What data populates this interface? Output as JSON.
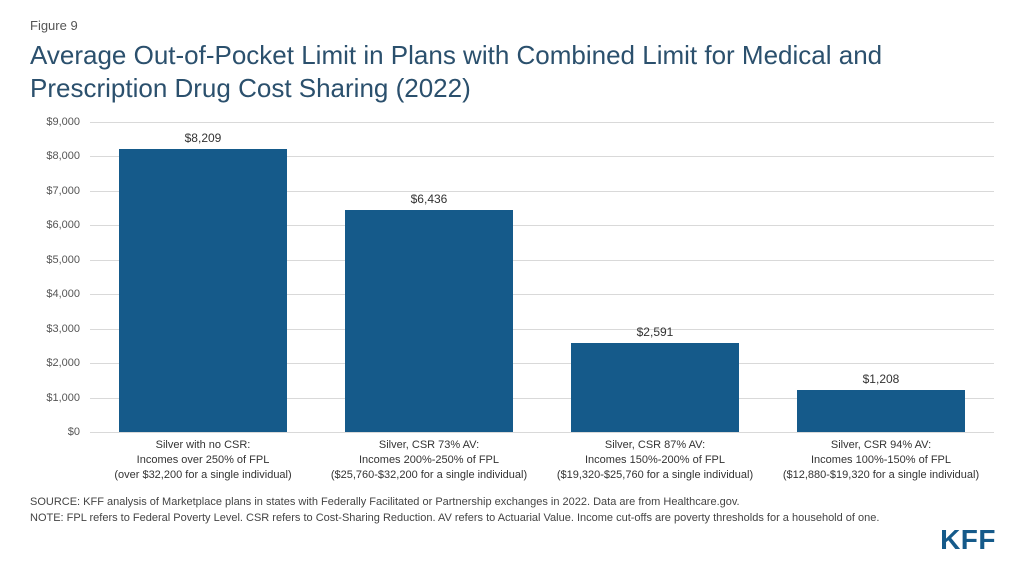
{
  "figure_label": "Figure 9",
  "title": "Average Out-of-Pocket Limit in Plans with Combined Limit for Medical and Prescription Drug Cost Sharing (2022)",
  "chart": {
    "type": "bar",
    "ylim": [
      0,
      9000
    ],
    "ytick_step": 1000,
    "yticks": [
      "$0",
      "$1,000",
      "$2,000",
      "$3,000",
      "$4,000",
      "$5,000",
      "$6,000",
      "$7,000",
      "$8,000",
      "$9,000"
    ],
    "grid_color": "#d9d9d9",
    "background_color": "#ffffff",
    "bar_color": "#155a8a",
    "bar_width_pct": 74,
    "label_fontsize": 12,
    "tick_fontsize": 11,
    "series": [
      {
        "value": 8209,
        "label": "$8,209",
        "x_line1": "Silver with no CSR:",
        "x_line2": "Incomes over 250% of FPL",
        "x_line3": "(over $32,200 for a single individual)"
      },
      {
        "value": 6436,
        "label": "$6,436",
        "x_line1": "Silver, CSR 73% AV:",
        "x_line2": "Incomes 200%-250% of FPL",
        "x_line3": "($25,760-$32,200 for a single individual)"
      },
      {
        "value": 2591,
        "label": "$2,591",
        "x_line1": "Silver, CSR 87% AV:",
        "x_line2": "Incomes 150%-200% of FPL",
        "x_line3": "($19,320-$25,760 for a single individual)"
      },
      {
        "value": 1208,
        "label": "$1,208",
        "x_line1": "Silver, CSR 94% AV:",
        "x_line2": "Incomes 100%-150% of FPL",
        "x_line3": "($12,880-$19,320 for a single individual)"
      }
    ]
  },
  "source": "SOURCE: KFF analysis of Marketplace plans in states with Federally Facilitated or Partnership exchanges in 2022. Data are from Healthcare.gov.",
  "note": "NOTE: FPL refers to Federal Poverty Level. CSR refers to Cost-Sharing Reduction. AV refers to Actuarial Value. Income cut-offs are poverty thresholds for a household of one.",
  "logo_text": "KFF",
  "colors": {
    "title": "#2b506d",
    "text": "#333333",
    "logo": "#155a8a"
  }
}
